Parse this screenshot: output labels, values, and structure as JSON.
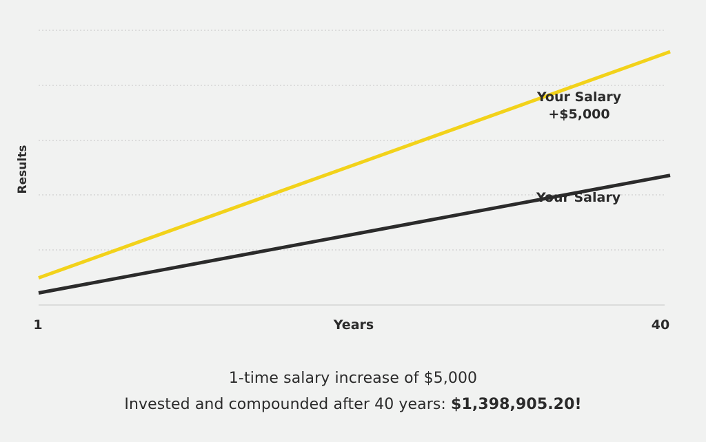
{
  "chart_data": {
    "type": "line",
    "title": "",
    "xlabel": "Years",
    "ylabel": "Results",
    "x_ticks": [
      "1",
      "40"
    ],
    "xlim": [
      1,
      40
    ],
    "ylim": [
      0,
      100
    ],
    "grid": true,
    "series": [
      {
        "name": "Your Salary +$5,000",
        "label_lines": [
          "Your Salary",
          "+$5,000"
        ],
        "color": "#f2d21a",
        "x": [
          1,
          40
        ],
        "y": [
          9,
          84
        ]
      },
      {
        "name": "Your Salary",
        "label_lines": [
          "Your Salary"
        ],
        "color": "#2b2b2b",
        "x": [
          1,
          40
        ],
        "y": [
          4,
          43
        ]
      }
    ]
  },
  "caption": {
    "line1": "1-time salary increase of $5,000",
    "line2_prefix": "Invested and compounded after 40 years: ",
    "line2_amount": "$1,398,905.20!"
  }
}
